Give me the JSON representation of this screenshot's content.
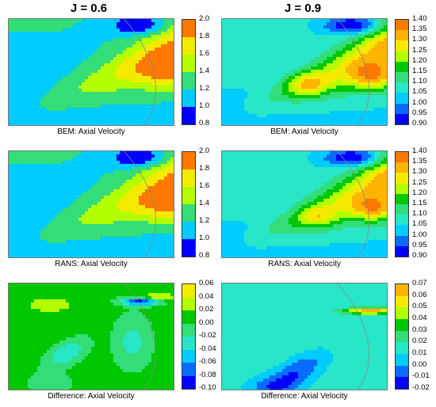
{
  "columns": [
    {
      "title": "J = 0.6"
    },
    {
      "title": "J = 0.9"
    }
  ],
  "palette": [
    "#0000ff",
    "#0a6cff",
    "#00ccff",
    "#28e6c8",
    "#33dd77",
    "#00c800",
    "#b3ff00",
    "#f4ea00",
    "#ffb400",
    "#ff7800",
    "#f2301e"
  ],
  "chart_data": [
    {
      "type": "heatmap",
      "title": "",
      "caption": "BEM: Axial Velocity",
      "row": 0,
      "col": 0,
      "colorbar": {
        "ticks": [
          "2.0",
          "1.8",
          "1.6",
          "1.4",
          "1.2",
          "1.0",
          "0.8"
        ],
        "min": 0.8,
        "max": 2.0
      }
    },
    {
      "type": "heatmap",
      "title": "",
      "caption": "BEM: Axial Velocity",
      "row": 0,
      "col": 1,
      "colorbar": {
        "ticks": [
          "1.40",
          "1.35",
          "1.30",
          "1.25",
          "1.20",
          "1.15",
          "1.10",
          "1.05",
          "1.00",
          "0.95",
          "0.90"
        ],
        "min": 0.9,
        "max": 1.4
      }
    },
    {
      "type": "heatmap",
      "title": "",
      "caption": "RANS: Axial Velocity",
      "row": 1,
      "col": 0,
      "colorbar": {
        "ticks": [
          "2.0",
          "1.8",
          "1.6",
          "1.4",
          "1.2",
          "1.0",
          "0.8"
        ],
        "min": 0.8,
        "max": 2.0
      }
    },
    {
      "type": "heatmap",
      "title": "",
      "caption": "RANS: Axial Velocity",
      "row": 1,
      "col": 1,
      "colorbar": {
        "ticks": [
          "1.40",
          "1.35",
          "1.30",
          "1.25",
          "1.20",
          "1.15",
          "1.10",
          "1.05",
          "1.00",
          "0.95",
          "0.90"
        ],
        "min": 0.9,
        "max": 1.4
      }
    },
    {
      "type": "heatmap",
      "title": "",
      "caption": "Difference: Axial Velocity",
      "row": 2,
      "col": 0,
      "colorbar": {
        "ticks": [
          "0.06",
          "0.04",
          "0.02",
          "0.00",
          "-0.02",
          "-0.04",
          "-0.06",
          "-0.08",
          "-0.10"
        ],
        "min": -0.1,
        "max": 0.06
      }
    },
    {
      "type": "heatmap",
      "title": "",
      "caption": "Difference: Axial Velocity",
      "row": 2,
      "col": 1,
      "colorbar": {
        "ticks": [
          "0.07",
          "0.06",
          "0.05",
          "0.04",
          "0.03",
          "0.02",
          "0.01",
          "0.00",
          "-0.01",
          "-0.02"
        ],
        "min": -0.02,
        "max": 0.07
      }
    }
  ]
}
